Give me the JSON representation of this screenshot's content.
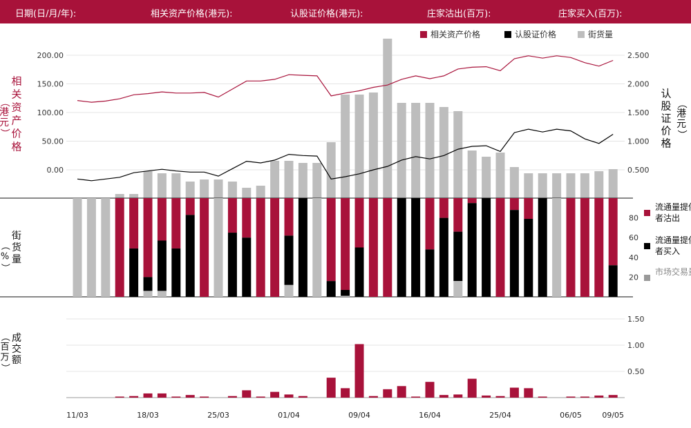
{
  "header": [
    {
      "label": "日期(日/月/年):"
    },
    {
      "label": "相关资产价格(港元):"
    },
    {
      "label": "认股证价格(港元):"
    },
    {
      "label": "庄家沽出(百万):"
    },
    {
      "label": "庄家买入(百万):"
    }
  ],
  "colors": {
    "brand": "#a8123a",
    "warrant": "#000000",
    "street": "#bdbdbd",
    "grid": "#e4e4e4"
  },
  "chart_data": [
    {
      "type": "line",
      "legend": [
        "相关资产价格",
        "认股证价格",
        "街货量"
      ],
      "y_left_label": "相关资产价格（港元）",
      "y_right_label": "认股证价格（港元）",
      "y_left_ticks": [
        "200.00",
        "150.00",
        "100.00",
        "50.00",
        "0.00"
      ],
      "y_right_ticks": [
        "2.500",
        "2.000",
        "1.500",
        "1.000",
        "0.500"
      ],
      "y_left_range": [
        0,
        200
      ],
      "y_right_range": [
        0.5,
        2.5
      ],
      "series": [
        {
          "name": "相关资产价格",
          "axis": "left",
          "values": [
            121,
            118,
            120,
            124,
            131,
            133,
            136,
            134,
            134,
            135,
            127,
            141,
            155,
            155,
            158,
            166,
            165,
            164,
            129,
            134,
            138,
            144,
            148,
            158,
            164,
            159,
            164,
            176,
            179,
            180,
            173,
            194,
            199,
            195,
            199,
            196,
            187,
            181,
            191
          ]
        },
        {
          "name": "认股证价格",
          "axis": "right",
          "values": [
            0.34,
            0.31,
            0.34,
            0.37,
            0.45,
            0.48,
            0.51,
            0.48,
            0.46,
            0.46,
            0.39,
            0.52,
            0.65,
            0.62,
            0.67,
            0.77,
            0.75,
            0.74,
            0.34,
            0.38,
            0.43,
            0.5,
            0.56,
            0.67,
            0.73,
            0.69,
            0.75,
            0.86,
            0.91,
            0.92,
            0.82,
            1.15,
            1.21,
            1.16,
            1.21,
            1.18,
            1.04,
            0.96,
            1.12
          ]
        },
        {
          "name": "街货量",
          "type": "bar",
          "values": [
            0,
            0,
            0,
            2,
            2,
            13,
            12,
            12,
            8,
            9,
            9,
            8,
            5,
            6,
            18,
            18,
            17,
            17,
            27,
            50,
            50,
            51,
            77,
            46,
            46,
            46,
            44,
            42,
            23,
            20,
            22,
            15,
            12,
            12,
            12,
            12,
            12,
            13,
            14
          ]
        }
      ]
    },
    {
      "type": "bar",
      "y_label": "街货量（%）",
      "y_ticks": [
        "80",
        "60",
        "40",
        "20"
      ],
      "y_range": [
        0,
        100
      ],
      "legend": [
        "流通量提供者沽出",
        "流通量提供者买入",
        "市场交易量"
      ],
      "series": [
        {
          "name": "流通量提供者沽出",
          "values": [
            0,
            0,
            0,
            100,
            51,
            80,
            43,
            51,
            17,
            100,
            0,
            35,
            40,
            100,
            100,
            38,
            0,
            0,
            84,
            93,
            50,
            100,
            100,
            0,
            0,
            52,
            20,
            34,
            5,
            0,
            100,
            12,
            21,
            0,
            0,
            100,
            100,
            100,
            68
          ]
        },
        {
          "name": "流通量提供者买入",
          "values": [
            0,
            0,
            0,
            0,
            49,
            14,
            51,
            49,
            83,
            0,
            0,
            65,
            60,
            0,
            0,
            50,
            100,
            0,
            16,
            6,
            50,
            0,
            0,
            100,
            100,
            48,
            80,
            50,
            95,
            100,
            0,
            88,
            79,
            100,
            0,
            0,
            0,
            0,
            32
          ]
        },
        {
          "name": "市场交易量",
          "values": [
            100,
            100,
            100,
            0,
            0,
            6,
            6,
            0,
            0,
            0,
            100,
            0,
            0,
            0,
            0,
            12,
            0,
            100,
            0,
            1,
            0,
            0,
            0,
            0,
            0,
            0,
            0,
            16,
            0,
            0,
            0,
            0,
            0,
            0,
            100,
            0,
            0,
            0,
            0
          ]
        }
      ]
    },
    {
      "type": "bar",
      "y_label": "成交额（百万）",
      "y_ticks": [
        "1.50",
        "1.00",
        "0.50"
      ],
      "y_range": [
        0,
        1.5
      ],
      "x_ticks": [
        {
          "label": "11/03",
          "index": 0
        },
        {
          "label": "18/03",
          "index": 5
        },
        {
          "label": "25/03",
          "index": 10
        },
        {
          "label": "01/04",
          "index": 15
        },
        {
          "label": "09/04",
          "index": 20
        },
        {
          "label": "16/04",
          "index": 25
        },
        {
          "label": "25/04",
          "index": 30
        },
        {
          "label": "06/05",
          "index": 35
        },
        {
          "label": "09/05",
          "index": 38
        }
      ],
      "series": [
        {
          "name": "成交额",
          "values": [
            0,
            0,
            0,
            0.02,
            0.03,
            0.08,
            0.08,
            0.02,
            0.05,
            0.02,
            0,
            0.03,
            0.14,
            0.02,
            0.11,
            0.06,
            0.03,
            0,
            0.38,
            0.18,
            1.02,
            0.03,
            0.16,
            0.22,
            0.02,
            0.3,
            0.05,
            0.06,
            0.36,
            0.04,
            0.03,
            0.19,
            0.18,
            0.02,
            0,
            0.02,
            0.02,
            0.04,
            0.05
          ]
        }
      ]
    }
  ]
}
